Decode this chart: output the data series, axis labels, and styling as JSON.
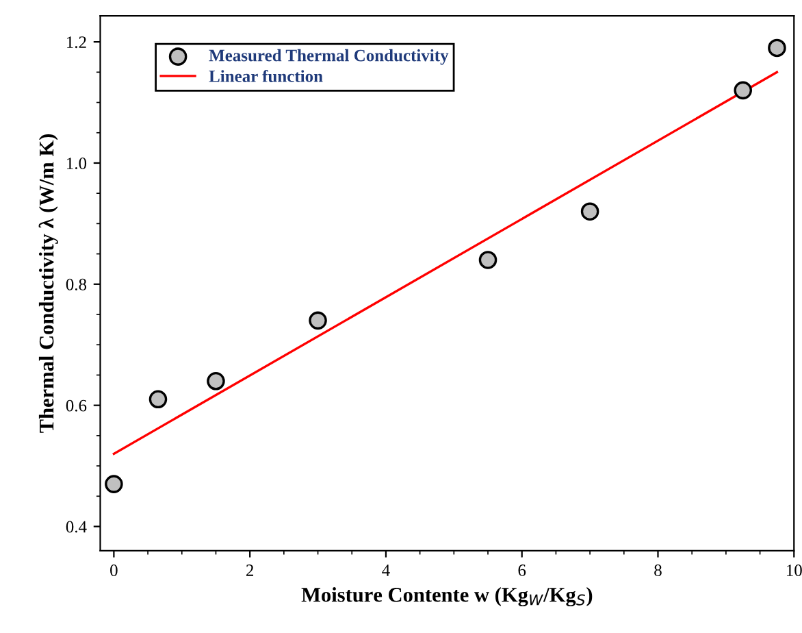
{
  "chart_data": {
    "type": "scatter",
    "xlabel": "Moisture Contente w (Kg$_{W}$/Kg$_{S}$)",
    "ylabel": "Thermal Conductivity λ (W/m K)",
    "xlim": [
      -0.2,
      10
    ],
    "ylim": [
      0.36,
      1.243
    ],
    "xticks": [
      0,
      2,
      4,
      6,
      8,
      10
    ],
    "yticks": [
      {
        "value": 0.4,
        "label": "0.4"
      },
      {
        "value": 0.6,
        "label": "0.6"
      },
      {
        "value": 0.8,
        "label": "0.8"
      },
      {
        "value": 1.0,
        "label": "1.0"
      },
      {
        "value": 1.2,
        "label": "1.2"
      }
    ],
    "legend": "top left",
    "grid": false,
    "series": [
      {
        "name": "Measured Thermal Conductivity",
        "marker": "circle",
        "color": "#c0c0c0",
        "x": [
          0,
          0.65,
          1.5,
          3,
          5.5,
          7,
          9.25,
          9.75
        ],
        "values": [
          0.47,
          0.61,
          0.64,
          0.74,
          0.84,
          0.92,
          1.12,
          1.19
        ]
      },
      {
        "name": "Linear function",
        "type": "line",
        "marker": "none",
        "line_style": "solid",
        "color": "#ff0000",
        "x": [
          0,
          9.75
        ],
        "values": [
          0.52,
          1.15
        ]
      }
    ]
  }
}
